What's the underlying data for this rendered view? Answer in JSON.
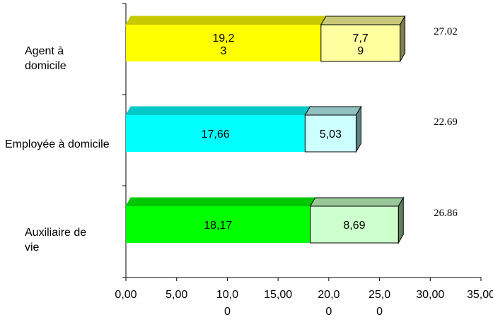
{
  "chart_data": {
    "type": "bar",
    "orientation": "horizontal",
    "stacked": true,
    "style": "3d",
    "categories": [
      "Agent à domicile",
      "Employée à domicile",
      "Auxiliaire de vie"
    ],
    "category_label_lines": [
      [
        "Agent à",
        "domicile"
      ],
      [
        "Employée à domicile"
      ],
      [
        "Auxiliaire de",
        "vie"
      ]
    ],
    "series": [
      {
        "values": [
          19.23,
          17.66,
          18.17
        ],
        "value_labels": [
          [
            "19,2",
            "3"
          ],
          [
            "17,66"
          ],
          [
            "18,17"
          ]
        ]
      },
      {
        "values": [
          7.79,
          5.03,
          8.69
        ],
        "value_labels": [
          [
            "7,7",
            "9"
          ],
          [
            "5,03"
          ],
          [
            "8,69"
          ]
        ]
      }
    ],
    "totals": [
      "27.02",
      "22.69",
      "26.86"
    ],
    "x_ticks": [
      {
        "value": 0,
        "label": [
          "0,00"
        ]
      },
      {
        "value": 5,
        "label": [
          "5,00"
        ]
      },
      {
        "value": 10,
        "label": [
          "10,0",
          "0"
        ]
      },
      {
        "value": 15,
        "label": [
          "15,00"
        ]
      },
      {
        "value": 20,
        "label": [
          "20,0",
          "0"
        ]
      },
      {
        "value": 25,
        "label": [
          "25,0",
          "0"
        ]
      },
      {
        "value": 30,
        "label": [
          "30,00"
        ]
      },
      {
        "value": 35,
        "label": [
          "35,00"
        ]
      }
    ],
    "xlim": [
      0,
      35
    ],
    "grid": false,
    "legend": "none",
    "colors": {
      "front": [
        "#ffff00",
        "#00ffff",
        "#00ff00"
      ],
      "front_top": [
        "#c8c800",
        "#00c8c8",
        "#00c800"
      ],
      "back": [
        "#ffffa0",
        "#ccffff",
        "#ccffcc"
      ],
      "back_top": [
        "#c8c878",
        "#90c0c0",
        "#98c898"
      ],
      "back_side": [
        "#808050",
        "#608080",
        "#608060"
      ]
    }
  }
}
